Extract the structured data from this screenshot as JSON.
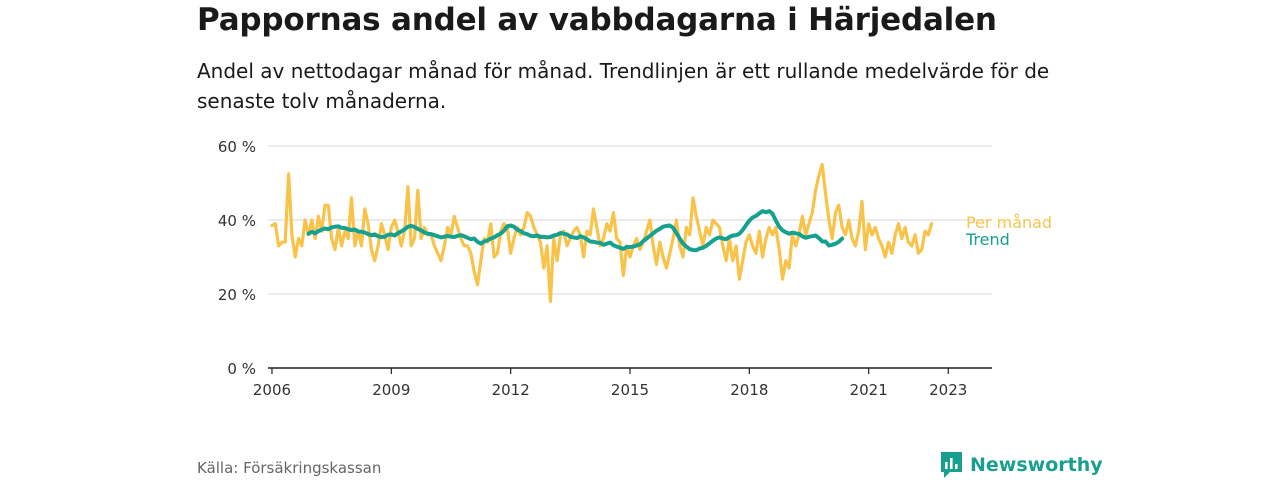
{
  "title": "Pappornas andel av vabbdagarna i Härjedalen",
  "subtitle": "Andel av nettodagar månad för månad. Trendlinjen är ett rullande medelvärde för de senaste tolv månaderna.",
  "source": "Källa: Försäkringskassan",
  "brand": "Newsworthy",
  "colors": {
    "monthly": "#f9c34a",
    "trend": "#15a08f",
    "grid": "#d9d9d9",
    "axis": "#222222",
    "brand": "#1a9e8f"
  },
  "chart_data": {
    "type": "line",
    "title": "Pappornas andel av vabbdagarna i Härjedalen",
    "xlabel": "",
    "ylabel": "",
    "ylim": [
      0,
      60
    ],
    "xlim": [
      2005.9,
      2024.1
    ],
    "y_ticks": [
      0,
      20,
      40,
      60
    ],
    "y_tick_labels": [
      "0 %",
      "20 %",
      "40 %",
      "60 %"
    ],
    "x_ticks": [
      2006,
      2009,
      2012,
      2015,
      2018,
      2021,
      2023
    ],
    "x_tick_labels": [
      "2006",
      "2009",
      "2012",
      "2015",
      "2018",
      "2021",
      "2023"
    ],
    "grid": true,
    "series": [
      {
        "name": "Per månad",
        "x_start": 2006.0,
        "step": 0.08333,
        "values": [
          38.5,
          39,
          33,
          34,
          34,
          52.5,
          36,
          30,
          35,
          33,
          40,
          36,
          40,
          35,
          41,
          37,
          44,
          44,
          35,
          32,
          38,
          33,
          37,
          35,
          46,
          33,
          37,
          33,
          43,
          39,
          32,
          29,
          33,
          39,
          36,
          32,
          38,
          40,
          37,
          33,
          37,
          49,
          33,
          35,
          48,
          35,
          38,
          36,
          36,
          33,
          31,
          29,
          33,
          38,
          36,
          41,
          38,
          35,
          33,
          33,
          31,
          26,
          22.5,
          29,
          35,
          34,
          39,
          30,
          31,
          37,
          39,
          38,
          31,
          35,
          38,
          36,
          38,
          42,
          41,
          38,
          36,
          34,
          27,
          33,
          18,
          35,
          29,
          36,
          37,
          33,
          35,
          37,
          38,
          36,
          30,
          37,
          36,
          43,
          38,
          33,
          35,
          39,
          37,
          42,
          35,
          34,
          25,
          33,
          30,
          33,
          35,
          32,
          34,
          37,
          40,
          33,
          28,
          34,
          30,
          27,
          31,
          35,
          40,
          33,
          30,
          38,
          36,
          46,
          41,
          37,
          33,
          38,
          36,
          40,
          39,
          38,
          33,
          29,
          35,
          29,
          33,
          24,
          29,
          34,
          36,
          33,
          31,
          37,
          30,
          35,
          38,
          36,
          38,
          32,
          24,
          29,
          27,
          36,
          33,
          36,
          41,
          36,
          39,
          42,
          48,
          52,
          55,
          47,
          40,
          35,
          42,
          44,
          38,
          36,
          40,
          35,
          33,
          37,
          45,
          32,
          39,
          36,
          38,
          35,
          33,
          30,
          34,
          31,
          36,
          39,
          35,
          38,
          34,
          33,
          36,
          31,
          32,
          37,
          36,
          39
        ]
      },
      {
        "name": "Trend",
        "x_start": 2006.917,
        "step": 0.08333,
        "values": [
          36.3,
          36.8,
          36.4,
          37.0,
          37.4,
          37.7,
          37.5,
          38.0,
          38.2,
          38.3,
          37.9,
          37.8,
          37.5,
          37.3,
          37.4,
          36.9,
          36.8,
          36.6,
          36.2,
          35.9,
          36.1,
          35.6,
          35.4,
          35.5,
          36.0,
          36.1,
          35.8,
          36.5,
          36.9,
          37.5,
          38.2,
          38.4,
          38.1,
          37.6,
          37.2,
          36.6,
          36.3,
          36.2,
          35.9,
          35.6,
          35.3,
          35.5,
          35.7,
          35.5,
          35.4,
          35.7,
          35.9,
          35.6,
          35.2,
          34.8,
          35.0,
          34.1,
          33.6,
          34.2,
          34.5,
          35.0,
          35.3,
          35.9,
          36.3,
          37.1,
          38.3,
          38.5,
          38.2,
          37.4,
          37.0,
          36.4,
          36.2,
          35.7,
          35.6,
          35.8,
          35.4,
          35.5,
          35.3,
          35.4,
          35.8,
          36.0,
          36.5,
          36.3,
          36.1,
          35.5,
          35.3,
          35.1,
          35.6,
          35.3,
          34.8,
          34.2,
          34.1,
          33.9,
          33.8,
          33.3,
          33.6,
          33.9,
          33.2,
          32.8,
          32.5,
          32.2,
          32.7,
          32.7,
          32.8,
          33.1,
          33.4,
          34.3,
          35.0,
          35.7,
          36.4,
          37.1,
          37.6,
          38.2,
          38.4,
          38.5,
          37.9,
          36.5,
          35.0,
          33.6,
          32.8,
          32.1,
          31.9,
          31.8,
          32.3,
          32.5,
          33.0,
          33.7,
          34.4,
          35.0,
          35.3,
          35.0,
          34.8,
          35.4,
          35.8,
          35.9,
          36.3,
          37.3,
          38.6,
          39.8,
          40.7,
          41.1,
          41.8,
          42.4,
          42.1,
          42.4,
          41.7,
          39.8,
          38.2,
          37.2,
          36.7,
          36.3,
          36.6,
          36.4,
          36.2,
          35.6,
          35.2,
          35.5,
          35.6,
          35.8,
          35.1,
          34.2,
          34.2,
          33.1,
          33.3,
          33.6,
          34.1,
          35.0
        ]
      }
    ],
    "annotations": [
      {
        "text": "Per månad",
        "series": "Per månad"
      },
      {
        "text": "Trend",
        "series": "Trend"
      }
    ]
  }
}
